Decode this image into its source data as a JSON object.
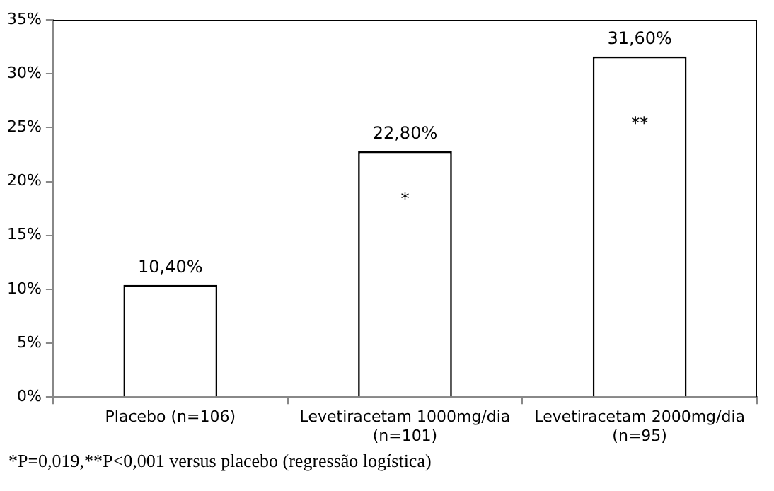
{
  "chart_data": {
    "type": "bar",
    "categories": [
      "Placebo (n=106)",
      "Levetiracetam 1000mg/dia (n=101)",
      "Levetiracetam 2000mg/dia (n=95)"
    ],
    "values": [
      10.4,
      22.8,
      31.6
    ],
    "value_labels": [
      "10,40%",
      "22,80%",
      "31,60%"
    ],
    "color": "#ffffff",
    "ylim": [
      0,
      35
    ],
    "yticks": [
      {
        "value": 0,
        "label": "0%"
      },
      {
        "value": 5,
        "label": "5%"
      },
      {
        "value": 10,
        "label": "10%"
      },
      {
        "value": 15,
        "label": "15%"
      },
      {
        "value": 20,
        "label": "20%"
      },
      {
        "value": 25,
        "label": "25%"
      },
      {
        "value": 30,
        "label": "30%"
      },
      {
        "value": 35,
        "label": "35%"
      }
    ],
    "grid": false,
    "legend": false,
    "annotations": [
      "*",
      "**",
      "*P=0,019,**P<0,001 versus placebo (regressão logística)"
    ]
  }
}
